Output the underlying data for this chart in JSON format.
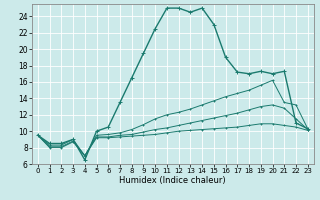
{
  "xlabel": "Humidex (Indice chaleur)",
  "background_color": "#cceaea",
  "grid_color": "#b0d4d4",
  "line_color": "#1a7a6e",
  "xlim": [
    -0.5,
    23.5
  ],
  "ylim": [
    6,
    25.5
  ],
  "xticks": [
    0,
    1,
    2,
    3,
    4,
    5,
    6,
    7,
    8,
    9,
    10,
    11,
    12,
    13,
    14,
    15,
    16,
    17,
    18,
    19,
    20,
    21,
    22,
    23
  ],
  "yticks": [
    6,
    8,
    10,
    12,
    14,
    16,
    18,
    20,
    22,
    24
  ],
  "series": [
    {
      "x": [
        0,
        1,
        2,
        3,
        4,
        5,
        6,
        7,
        8,
        9,
        10,
        11,
        12,
        13,
        14,
        15,
        16,
        17,
        18,
        19,
        20,
        21,
        22,
        23
      ],
      "y": [
        9.5,
        8.5,
        8.5,
        9.0,
        6.5,
        10.0,
        10.5,
        13.5,
        16.5,
        19.5,
        22.5,
        25.0,
        25.0,
        24.5,
        25.0,
        23.0,
        19.0,
        17.2,
        17.0,
        17.3,
        17.0,
        17.3,
        11.0,
        10.3
      ]
    },
    {
      "x": [
        0,
        1,
        2,
        3,
        4,
        5,
        6,
        7,
        8,
        9,
        10,
        11,
        12,
        13,
        14,
        15,
        16,
        17,
        18,
        19,
        20,
        21,
        22,
        23
      ],
      "y": [
        9.5,
        8.3,
        8.3,
        9.0,
        7.0,
        9.5,
        9.6,
        9.8,
        10.2,
        10.8,
        11.5,
        12.0,
        12.3,
        12.7,
        13.2,
        13.7,
        14.2,
        14.6,
        15.0,
        15.6,
        16.2,
        13.5,
        13.2,
        10.3
      ]
    },
    {
      "x": [
        0,
        1,
        2,
        3,
        4,
        5,
        6,
        7,
        8,
        9,
        10,
        11,
        12,
        13,
        14,
        15,
        16,
        17,
        18,
        19,
        20,
        21,
        22,
        23
      ],
      "y": [
        9.5,
        8.1,
        8.1,
        8.8,
        7.0,
        9.3,
        9.3,
        9.5,
        9.6,
        9.9,
        10.2,
        10.4,
        10.7,
        11.0,
        11.3,
        11.6,
        11.9,
        12.2,
        12.6,
        13.0,
        13.2,
        12.8,
        11.5,
        10.2
      ]
    },
    {
      "x": [
        0,
        1,
        2,
        3,
        4,
        5,
        6,
        7,
        8,
        9,
        10,
        11,
        12,
        13,
        14,
        15,
        16,
        17,
        18,
        19,
        20,
        21,
        22,
        23
      ],
      "y": [
        9.5,
        8.0,
        8.0,
        8.7,
        7.0,
        9.2,
        9.2,
        9.3,
        9.4,
        9.5,
        9.6,
        9.8,
        10.0,
        10.1,
        10.2,
        10.3,
        10.4,
        10.5,
        10.7,
        10.9,
        10.9,
        10.7,
        10.5,
        10.1
      ]
    }
  ]
}
